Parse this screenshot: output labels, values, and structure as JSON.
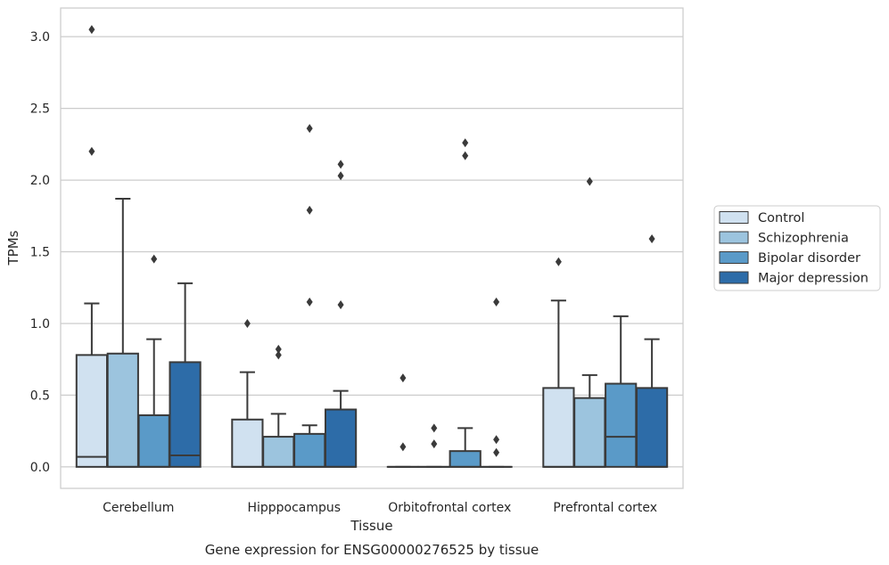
{
  "chart_data": {
    "type": "box",
    "xlabel": "Tissue",
    "ylabel": "TPMs",
    "caption": "Gene expression for ENSG00000276525 by tissue",
    "ylim": [
      -0.15,
      3.2
    ],
    "yticks": [
      "0.0",
      "0.5",
      "1.0",
      "1.5",
      "2.0",
      "2.5",
      "3.0"
    ],
    "grid": "horizontal",
    "legend_position": "right",
    "categories": [
      "Cerebellum",
      "Hipppocampus",
      "Orbitofrontal cortex",
      "Prefrontal cortex"
    ],
    "series": [
      {
        "name": "Control",
        "color": "#d0e1f0",
        "boxes": [
          {
            "whislo": 0.0,
            "q1": 0.0,
            "med": 0.07,
            "q3": 0.78,
            "whishi": 1.14,
            "fliers": [
              2.2,
              3.05
            ]
          },
          {
            "whislo": 0.0,
            "q1": 0.0,
            "med": 0.0,
            "q3": 0.33,
            "whishi": 0.66,
            "fliers": [
              1.0
            ]
          },
          {
            "whislo": 0.0,
            "q1": 0.0,
            "med": 0.0,
            "q3": 0.0,
            "whishi": 0.0,
            "fliers": [
              0.14,
              0.62
            ]
          },
          {
            "whislo": 0.0,
            "q1": 0.0,
            "med": 0.0,
            "q3": 0.55,
            "whishi": 1.16,
            "fliers": [
              1.43
            ]
          }
        ]
      },
      {
        "name": "Schizophrenia",
        "color": "#9cc4de",
        "boxes": [
          {
            "whislo": 0.0,
            "q1": 0.0,
            "med": 0.0,
            "q3": 0.79,
            "whishi": 1.87,
            "fliers": []
          },
          {
            "whislo": 0.0,
            "q1": 0.0,
            "med": 0.0,
            "q3": 0.21,
            "whishi": 0.37,
            "fliers": [
              0.78,
              0.82
            ]
          },
          {
            "whislo": 0.0,
            "q1": 0.0,
            "med": 0.0,
            "q3": 0.0,
            "whishi": 0.0,
            "fliers": [
              0.16,
              0.27
            ]
          },
          {
            "whislo": 0.0,
            "q1": 0.0,
            "med": 0.0,
            "q3": 0.48,
            "whishi": 0.64,
            "fliers": [
              1.99
            ]
          }
        ]
      },
      {
        "name": "Bipolar disorder",
        "color": "#5a9ac8",
        "boxes": [
          {
            "whislo": 0.0,
            "q1": 0.0,
            "med": 0.0,
            "q3": 0.36,
            "whishi": 0.89,
            "fliers": [
              1.45
            ]
          },
          {
            "whislo": 0.0,
            "q1": 0.0,
            "med": 0.0,
            "q3": 0.23,
            "whishi": 0.29,
            "fliers": [
              1.15,
              1.79,
              2.36
            ]
          },
          {
            "whislo": 0.0,
            "q1": 0.0,
            "med": 0.0,
            "q3": 0.11,
            "whishi": 0.27,
            "fliers": [
              2.17,
              2.26
            ]
          },
          {
            "whislo": 0.0,
            "q1": 0.0,
            "med": 0.21,
            "q3": 0.58,
            "whishi": 1.05,
            "fliers": []
          }
        ]
      },
      {
        "name": "Major depression",
        "color": "#2d6ca8",
        "boxes": [
          {
            "whislo": 0.0,
            "q1": 0.0,
            "med": 0.08,
            "q3": 0.73,
            "whishi": 1.28,
            "fliers": []
          },
          {
            "whislo": 0.0,
            "q1": 0.0,
            "med": 0.0,
            "q3": 0.4,
            "whishi": 0.53,
            "fliers": [
              1.13,
              2.03,
              2.11
            ]
          },
          {
            "whislo": 0.0,
            "q1": 0.0,
            "med": 0.0,
            "q3": 0.0,
            "whishi": 0.0,
            "fliers": [
              0.1,
              0.19,
              1.15
            ]
          },
          {
            "whislo": 0.0,
            "q1": 0.0,
            "med": 0.0,
            "q3": 0.55,
            "whishi": 0.89,
            "fliers": [
              1.59
            ]
          }
        ]
      }
    ]
  }
}
